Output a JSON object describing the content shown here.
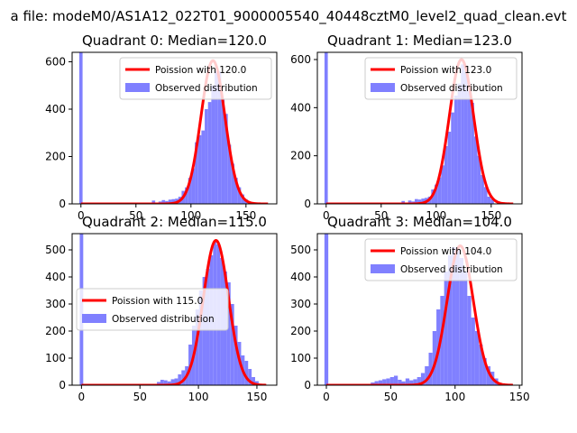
{
  "figure": {
    "suptitle": "a file: modeM0/AS1A12_022T01_9000005540_40448cztM0_level2_quad_clean.evt"
  },
  "colors": {
    "hist": "#8080ff",
    "fit": "#ff0000"
  },
  "chart_data": [
    {
      "type": "bar",
      "title": "Quadrant 0: Median=120.0",
      "xlim": [
        -8,
        178
      ],
      "ylim": [
        0,
        640
      ],
      "xticks": [
        0,
        50,
        100,
        150
      ],
      "yticks": [
        0,
        200,
        400,
        600
      ],
      "legend": {
        "position": "top-right",
        "fit_label": "Poission with 120.0",
        "hist_label": "Observed distribution"
      },
      "median": 120.0,
      "bin_width": 3,
      "spike": {
        "x": 0,
        "height": 640
      },
      "hist_bins": [
        {
          "x": 66,
          "y": 14
        },
        {
          "x": 72,
          "y": 10
        },
        {
          "x": 75,
          "y": 16
        },
        {
          "x": 78,
          "y": 12
        },
        {
          "x": 81,
          "y": 18
        },
        {
          "x": 84,
          "y": 20
        },
        {
          "x": 87,
          "y": 22
        },
        {
          "x": 90,
          "y": 30
        },
        {
          "x": 93,
          "y": 55
        },
        {
          "x": 96,
          "y": 70
        },
        {
          "x": 99,
          "y": 110
        },
        {
          "x": 102,
          "y": 150
        },
        {
          "x": 105,
          "y": 260
        },
        {
          "x": 108,
          "y": 290
        },
        {
          "x": 111,
          "y": 310
        },
        {
          "x": 114,
          "y": 400
        },
        {
          "x": 117,
          "y": 430
        },
        {
          "x": 120,
          "y": 500
        },
        {
          "x": 123,
          "y": 560
        },
        {
          "x": 126,
          "y": 560
        },
        {
          "x": 129,
          "y": 440
        },
        {
          "x": 132,
          "y": 380
        },
        {
          "x": 135,
          "y": 250
        },
        {
          "x": 138,
          "y": 170
        },
        {
          "x": 141,
          "y": 110
        },
        {
          "x": 144,
          "y": 70
        },
        {
          "x": 147,
          "y": 40
        },
        {
          "x": 150,
          "y": 20
        }
      ],
      "fit_peak": 605,
      "fit_range": [
        0,
        170
      ]
    },
    {
      "type": "bar",
      "title": "Quadrant 1: Median=123.0",
      "xlim": [
        -8,
        178
      ],
      "ylim": [
        0,
        630
      ],
      "xticks": [
        0,
        50,
        100,
        150
      ],
      "yticks": [
        0,
        200,
        400,
        600
      ],
      "legend": {
        "position": "top-right",
        "fit_label": "Poission with 123.0",
        "hist_label": "Observed distribution"
      },
      "median": 123.0,
      "bin_width": 3,
      "spike": {
        "x": 0,
        "height": 630
      },
      "hist_bins": [
        {
          "x": 70,
          "y": 12
        },
        {
          "x": 76,
          "y": 14
        },
        {
          "x": 79,
          "y": 10
        },
        {
          "x": 82,
          "y": 20
        },
        {
          "x": 85,
          "y": 18
        },
        {
          "x": 88,
          "y": 22
        },
        {
          "x": 91,
          "y": 25
        },
        {
          "x": 94,
          "y": 30
        },
        {
          "x": 97,
          "y": 60
        },
        {
          "x": 100,
          "y": 80
        },
        {
          "x": 103,
          "y": 110
        },
        {
          "x": 106,
          "y": 160
        },
        {
          "x": 109,
          "y": 240
        },
        {
          "x": 112,
          "y": 300
        },
        {
          "x": 115,
          "y": 380
        },
        {
          "x": 118,
          "y": 450
        },
        {
          "x": 121,
          "y": 500
        },
        {
          "x": 124,
          "y": 580
        },
        {
          "x": 127,
          "y": 550
        },
        {
          "x": 130,
          "y": 470
        },
        {
          "x": 133,
          "y": 420
        },
        {
          "x": 136,
          "y": 280
        },
        {
          "x": 139,
          "y": 200
        },
        {
          "x": 142,
          "y": 120
        },
        {
          "x": 145,
          "y": 70
        },
        {
          "x": 148,
          "y": 30
        },
        {
          "x": 151,
          "y": 20
        }
      ],
      "fit_peak": 600,
      "fit_range": [
        0,
        170
      ]
    },
    {
      "type": "bar",
      "title": "Quadrant 2: Median=115.0",
      "xlim": [
        -8,
        167
      ],
      "ylim": [
        0,
        560
      ],
      "xticks": [
        0,
        50,
        100,
        150
      ],
      "yticks": [
        0,
        100,
        200,
        300,
        400,
        500
      ],
      "legend": {
        "position": "center-left",
        "fit_label": "Poission with 115.0",
        "hist_label": "Observed distribution"
      },
      "median": 115.0,
      "bin_width": 3,
      "spike": {
        "x": 0,
        "height": 560
      },
      "hist_bins": [
        {
          "x": 66,
          "y": 12
        },
        {
          "x": 69,
          "y": 20
        },
        {
          "x": 72,
          "y": 18
        },
        {
          "x": 75,
          "y": 14
        },
        {
          "x": 78,
          "y": 22
        },
        {
          "x": 81,
          "y": 25
        },
        {
          "x": 84,
          "y": 40
        },
        {
          "x": 87,
          "y": 55
        },
        {
          "x": 90,
          "y": 70
        },
        {
          "x": 93,
          "y": 150
        },
        {
          "x": 96,
          "y": 220
        },
        {
          "x": 99,
          "y": 280
        },
        {
          "x": 102,
          "y": 350
        },
        {
          "x": 105,
          "y": 400
        },
        {
          "x": 108,
          "y": 430
        },
        {
          "x": 111,
          "y": 480
        },
        {
          "x": 114,
          "y": 530
        },
        {
          "x": 117,
          "y": 520
        },
        {
          "x": 120,
          "y": 470
        },
        {
          "x": 123,
          "y": 420
        },
        {
          "x": 126,
          "y": 380
        },
        {
          "x": 129,
          "y": 300
        },
        {
          "x": 132,
          "y": 220
        },
        {
          "x": 135,
          "y": 160
        },
        {
          "x": 138,
          "y": 110
        },
        {
          "x": 141,
          "y": 90
        },
        {
          "x": 144,
          "y": 60
        },
        {
          "x": 147,
          "y": 30
        },
        {
          "x": 150,
          "y": 15
        }
      ],
      "fit_peak": 535,
      "fit_range": [
        0,
        158
      ]
    },
    {
      "type": "bar",
      "title": "Quadrant 3: Median=104.0",
      "xlim": [
        -7,
        152
      ],
      "ylim": [
        0,
        560
      ],
      "xticks": [
        0,
        50,
        100,
        150
      ],
      "yticks": [
        0,
        100,
        200,
        300,
        400,
        500
      ],
      "legend": {
        "position": "top-right",
        "fit_label": "Poission with 104.0",
        "hist_label": "Observed distribution"
      },
      "median": 104.0,
      "bin_width": 3,
      "spike": {
        "x": 0,
        "height": 560
      },
      "hist_bins": [
        {
          "x": 36,
          "y": 10
        },
        {
          "x": 39,
          "y": 15
        },
        {
          "x": 42,
          "y": 18
        },
        {
          "x": 45,
          "y": 22
        },
        {
          "x": 48,
          "y": 25
        },
        {
          "x": 51,
          "y": 30
        },
        {
          "x": 54,
          "y": 35
        },
        {
          "x": 57,
          "y": 20
        },
        {
          "x": 60,
          "y": 14
        },
        {
          "x": 63,
          "y": 25
        },
        {
          "x": 66,
          "y": 18
        },
        {
          "x": 69,
          "y": 22
        },
        {
          "x": 72,
          "y": 30
        },
        {
          "x": 75,
          "y": 45
        },
        {
          "x": 78,
          "y": 70
        },
        {
          "x": 81,
          "y": 120
        },
        {
          "x": 84,
          "y": 200
        },
        {
          "x": 87,
          "y": 280
        },
        {
          "x": 90,
          "y": 330
        },
        {
          "x": 93,
          "y": 420
        },
        {
          "x": 96,
          "y": 480
        },
        {
          "x": 99,
          "y": 510
        },
        {
          "x": 102,
          "y": 500
        },
        {
          "x": 105,
          "y": 470
        },
        {
          "x": 108,
          "y": 420
        },
        {
          "x": 111,
          "y": 330
        },
        {
          "x": 114,
          "y": 250
        },
        {
          "x": 117,
          "y": 200
        },
        {
          "x": 120,
          "y": 150
        },
        {
          "x": 123,
          "y": 100
        },
        {
          "x": 126,
          "y": 70
        },
        {
          "x": 129,
          "y": 50
        },
        {
          "x": 132,
          "y": 25
        }
      ],
      "fit_peak": 515,
      "fit_range": [
        0,
        145
      ]
    }
  ]
}
